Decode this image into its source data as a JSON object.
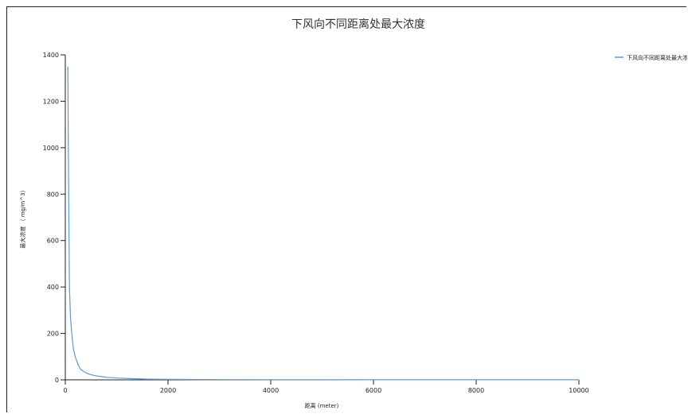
{
  "chart_data": {
    "type": "line",
    "title": "下风向不同距离处最大浓度",
    "xlabel": "距离 (meter)",
    "ylabel": "最大浓度 （ mg/m^3）",
    "xlim": [
      0,
      10000
    ],
    "ylim": [
      0,
      1400
    ],
    "x_ticks": [
      "0",
      "2000",
      "4000",
      "6000",
      "8000",
      "10000"
    ],
    "y_ticks": [
      "0",
      "200",
      "400",
      "600",
      "800",
      "1000",
      "1200",
      "1400"
    ],
    "grid": false,
    "legend_position": "top-right",
    "series": [
      {
        "name": "下风向不同距离处最大浓度",
        "color": "#5b9bd5",
        "x": [
          50,
          60,
          80,
          100,
          130,
          160,
          200,
          250,
          300,
          400,
          500,
          600,
          800,
          1000,
          1300,
          1600,
          2000,
          3000,
          4000,
          5000,
          6000,
          7000,
          8000,
          9000,
          10000
        ],
        "y": [
          1350,
          950,
          400,
          270,
          190,
          130,
          95,
          65,
          45,
          30,
          22,
          17,
          11,
          8,
          5,
          3,
          2,
          1,
          0.8,
          0.6,
          0.5,
          0.4,
          0.3,
          0.25,
          0.2
        ]
      }
    ]
  }
}
